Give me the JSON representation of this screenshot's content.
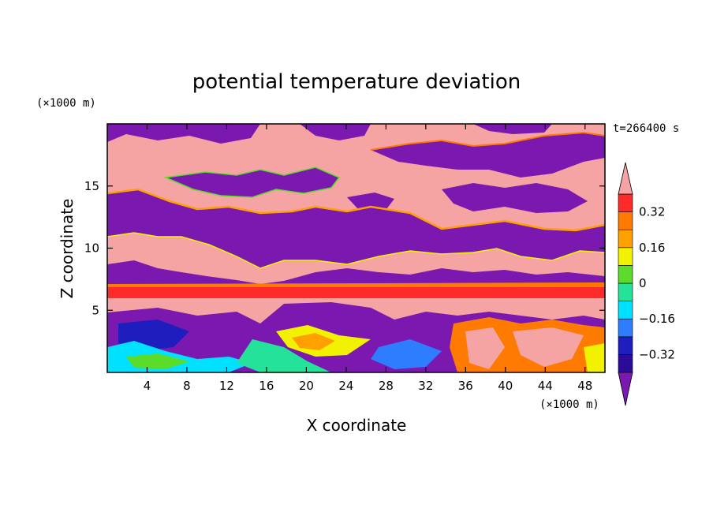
{
  "chart_data": {
    "type": "heatmap",
    "title": "potential temperature deviation",
    "xlabel": "X coordinate",
    "ylabel": "Z coordinate",
    "x_unit": "(×1000 m)",
    "y_unit": "(×1000 m)",
    "time_label": "t=266400 s",
    "xlim": [
      0,
      50
    ],
    "ylim": [
      0,
      20
    ],
    "x_ticks": [
      4,
      8,
      12,
      16,
      20,
      24,
      28,
      32,
      36,
      40,
      44,
      48
    ],
    "y_ticks": [
      5,
      10,
      15
    ],
    "colorbar": {
      "levels": [
        -0.4,
        -0.32,
        -0.24,
        -0.16,
        -0.08,
        0,
        0.08,
        0.16,
        0.24,
        0.32,
        0.4
      ],
      "tick_labels": [
        "0.32",
        "0.16",
        "0",
        "−0.16",
        "−0.32"
      ],
      "tick_values": [
        0.32,
        0.16,
        0,
        -0.16,
        -0.32
      ],
      "colors": [
        "#2c0a9a",
        "#1e1ebe",
        "#2f7dff",
        "#00e0ff",
        "#25e29a",
        "#5cdc2a",
        "#f2f200",
        "#ffa000",
        "#ff7a00",
        "#ff2a2a"
      ],
      "below_color": "#7a18b0",
      "above_color": "#f6a3a3"
    },
    "regions": [
      {
        "level": "above",
        "desc": "upper pink patches"
      },
      {
        "level": "below",
        "desc": "upper purple patches"
      }
    ]
  }
}
